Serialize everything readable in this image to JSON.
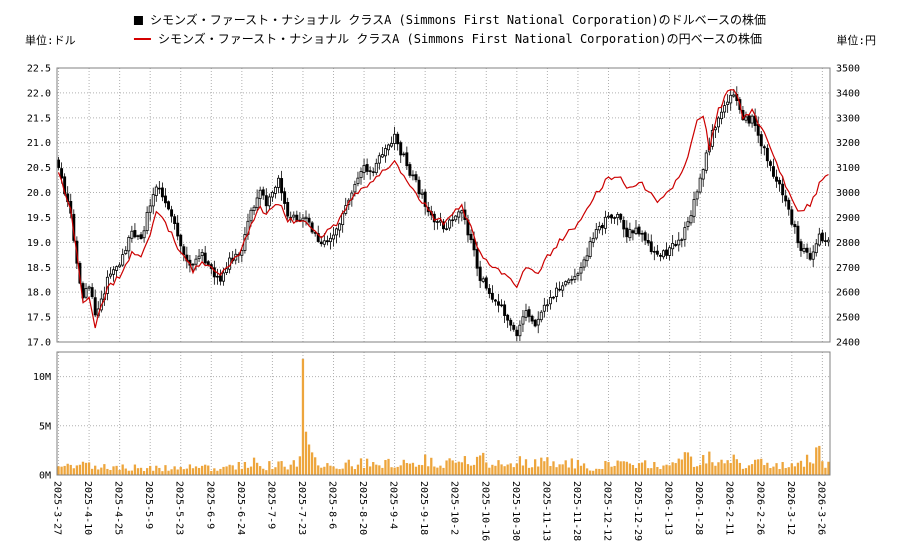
{
  "legend": {
    "items": [
      {
        "marker": "square-icon",
        "color": "#000000",
        "label": "シモンズ・ファースト・ナショナル クラスA (Simmons First National Corporation)のドルベースの株価"
      },
      {
        "marker": "line-icon",
        "color": "#d40000",
        "label": "シモンズ・ファースト・ナショナル クラスA (Simmons First National Corporation)の円ベースの株価"
      }
    ]
  },
  "axes": {
    "left_unit": "単位:ドル",
    "right_unit": "単位:円"
  },
  "chart_data": {
    "type": "candlestick",
    "subtype": "ohlc-candles + line overlay + volume bars",
    "title": "",
    "price_axis_left": {
      "unit": "ドル",
      "min": 17.0,
      "max": 22.5,
      "step": 0.5,
      "tick_labels": [
        "22.5",
        "22.0",
        "21.5",
        "21.0",
        "20.5",
        "20.0",
        "19.5",
        "19.0",
        "18.5",
        "18.0",
        "17.5",
        "17.0"
      ]
    },
    "price_axis_right": {
      "unit": "円",
      "min": 2400,
      "max": 3500,
      "step": 100,
      "tick_labels": [
        "3500",
        "3400",
        "3300",
        "3200",
        "3100",
        "3000",
        "2900",
        "2800",
        "2700",
        "2600",
        "2500",
        "2400"
      ]
    },
    "volume_axis": {
      "max_m": 12.5,
      "tick_labels": [
        "10M",
        "5M",
        "0M"
      ],
      "tick_values_m": [
        10,
        5,
        0
      ]
    },
    "x_tick_labels": [
      "2025-3-27",
      "2025-4-10",
      "2025-4-25",
      "2025-5-9",
      "2025-5-23",
      "2025-6-9",
      "2025-6-24",
      "2025-7-9",
      "2025-7-23",
      "2025-8-6",
      "2025-8-20",
      "2025-9-4",
      "2025-9-18",
      "2025-10-2",
      "2025-10-16",
      "2025-10-30",
      "2025-11-13",
      "2025-11-28",
      "2025-12-12",
      "2025-12-29",
      "2026-1-13",
      "2026-1-28",
      "2026-2-11",
      "2026-2-26",
      "2026-3-12",
      "2026-3-26"
    ],
    "n_points": 253,
    "points_per_tick": 10,
    "series": {
      "usd_close_keypoints": [
        [
          0,
          20.5
        ],
        [
          2,
          20.05
        ],
        [
          4,
          19.6
        ],
        [
          6,
          18.6
        ],
        [
          8,
          17.9
        ],
        [
          10,
          18.15
        ],
        [
          12,
          17.5
        ],
        [
          14,
          17.8
        ],
        [
          16,
          18.3
        ],
        [
          20,
          18.55
        ],
        [
          24,
          19.2
        ],
        [
          27,
          19.0
        ],
        [
          30,
          19.8
        ],
        [
          32,
          20.1
        ],
        [
          34,
          19.9
        ],
        [
          37,
          19.5
        ],
        [
          40,
          18.9
        ],
        [
          44,
          18.5
        ],
        [
          47,
          18.8
        ],
        [
          50,
          18.4
        ],
        [
          53,
          18.3
        ],
        [
          56,
          18.6
        ],
        [
          60,
          18.9
        ],
        [
          63,
          19.6
        ],
        [
          66,
          20.0
        ],
        [
          68,
          19.8
        ],
        [
          70,
          20.0
        ],
        [
          72,
          20.2
        ],
        [
          75,
          19.6
        ],
        [
          78,
          19.5
        ],
        [
          80,
          19.55
        ],
        [
          83,
          19.2
        ],
        [
          86,
          18.95
        ],
        [
          90,
          19.1
        ],
        [
          93,
          19.5
        ],
        [
          96,
          20.0
        ],
        [
          100,
          20.5
        ],
        [
          103,
          20.45
        ],
        [
          106,
          20.8
        ],
        [
          110,
          21.1
        ],
        [
          113,
          20.7
        ],
        [
          116,
          20.3
        ],
        [
          120,
          19.8
        ],
        [
          123,
          19.5
        ],
        [
          126,
          19.3
        ],
        [
          130,
          19.5
        ],
        [
          132,
          19.65
        ],
        [
          135,
          19.0
        ],
        [
          138,
          18.3
        ],
        [
          140,
          18.1
        ],
        [
          143,
          17.8
        ],
        [
          146,
          17.6
        ],
        [
          150,
          17.2
        ],
        [
          153,
          17.6
        ],
        [
          156,
          17.4
        ],
        [
          160,
          17.8
        ],
        [
          163,
          18.0
        ],
        [
          166,
          18.2
        ],
        [
          170,
          18.4
        ],
        [
          173,
          18.8
        ],
        [
          176,
          19.2
        ],
        [
          180,
          19.5
        ],
        [
          183,
          19.6
        ],
        [
          186,
          19.2
        ],
        [
          190,
          19.2
        ],
        [
          193,
          19.0
        ],
        [
          196,
          18.7
        ],
        [
          200,
          18.85
        ],
        [
          203,
          19.0
        ],
        [
          206,
          19.4
        ],
        [
          210,
          20.3
        ],
        [
          213,
          21.0
        ],
        [
          216,
          21.5
        ],
        [
          220,
          22.0
        ],
        [
          222,
          21.9
        ],
        [
          224,
          21.4
        ],
        [
          227,
          21.5
        ],
        [
          230,
          21.0
        ],
        [
          233,
          20.5
        ],
        [
          236,
          20.1
        ],
        [
          240,
          19.4
        ],
        [
          243,
          18.9
        ],
        [
          246,
          18.7
        ],
        [
          249,
          19.1
        ],
        [
          252,
          19.0
        ]
      ],
      "jpy_keypoints": [
        [
          0,
          3080
        ],
        [
          2,
          3000
        ],
        [
          4,
          2930
        ],
        [
          6,
          2760
        ],
        [
          8,
          2550
        ],
        [
          10,
          2590
        ],
        [
          12,
          2460
        ],
        [
          14,
          2540
        ],
        [
          16,
          2620
        ],
        [
          20,
          2660
        ],
        [
          24,
          2760
        ],
        [
          27,
          2740
        ],
        [
          30,
          2840
        ],
        [
          32,
          2920
        ],
        [
          34,
          2900
        ],
        [
          37,
          2830
        ],
        [
          40,
          2760
        ],
        [
          44,
          2690
        ],
        [
          47,
          2730
        ],
        [
          50,
          2690
        ],
        [
          53,
          2670
        ],
        [
          56,
          2710
        ],
        [
          60,
          2770
        ],
        [
          63,
          2880
        ],
        [
          66,
          2940
        ],
        [
          68,
          2910
        ],
        [
          70,
          2930
        ],
        [
          72,
          2960
        ],
        [
          75,
          2890
        ],
        [
          78,
          2880
        ],
        [
          80,
          2890
        ],
        [
          83,
          2860
        ],
        [
          86,
          2830
        ],
        [
          90,
          2860
        ],
        [
          93,
          2910
        ],
        [
          96,
          2980
        ],
        [
          100,
          3030
        ],
        [
          103,
          3040
        ],
        [
          106,
          3080
        ],
        [
          110,
          3130
        ],
        [
          113,
          3070
        ],
        [
          116,
          3010
        ],
        [
          120,
          2950
        ],
        [
          123,
          2900
        ],
        [
          126,
          2880
        ],
        [
          130,
          2930
        ],
        [
          132,
          2940
        ],
        [
          135,
          2860
        ],
        [
          138,
          2760
        ],
        [
          140,
          2730
        ],
        [
          143,
          2700
        ],
        [
          146,
          2670
        ],
        [
          150,
          2630
        ],
        [
          153,
          2700
        ],
        [
          156,
          2670
        ],
        [
          160,
          2740
        ],
        [
          163,
          2790
        ],
        [
          166,
          2830
        ],
        [
          170,
          2870
        ],
        [
          173,
          2940
        ],
        [
          176,
          3000
        ],
        [
          180,
          3060
        ],
        [
          183,
          3070
        ],
        [
          186,
          3020
        ],
        [
          190,
          3040
        ],
        [
          193,
          3010
        ],
        [
          196,
          2970
        ],
        [
          200,
          3010
        ],
        [
          203,
          3060
        ],
        [
          206,
          3140
        ],
        [
          209,
          3290
        ],
        [
          211,
          3310
        ],
        [
          213,
          3180
        ],
        [
          216,
          3330
        ],
        [
          220,
          3420
        ],
        [
          222,
          3390
        ],
        [
          224,
          3300
        ],
        [
          227,
          3330
        ],
        [
          230,
          3260
        ],
        [
          233,
          3170
        ],
        [
          236,
          3090
        ],
        [
          240,
          2970
        ],
        [
          243,
          2920
        ],
        [
          246,
          2950
        ],
        [
          249,
          3030
        ],
        [
          252,
          3070
        ]
      ],
      "volume_keypoints": [
        [
          0,
          0.8
        ],
        [
          6,
          0.9
        ],
        [
          9,
          1.1
        ],
        [
          12,
          0.9
        ],
        [
          16,
          0.8
        ],
        [
          19,
          1.0
        ],
        [
          23,
          0.7
        ],
        [
          28,
          0.8
        ],
        [
          33,
          0.65
        ],
        [
          38,
          0.7
        ],
        [
          43,
          0.75
        ],
        [
          48,
          0.7
        ],
        [
          53,
          0.8
        ],
        [
          57,
          1.2
        ],
        [
          60,
          0.9
        ],
        [
          63,
          1.4
        ],
        [
          67,
          0.9
        ],
        [
          70,
          1.1
        ],
        [
          74,
          0.9
        ],
        [
          78,
          1.1
        ],
        [
          84,
          1.4
        ],
        [
          88,
          1.1
        ],
        [
          92,
          1.0
        ],
        [
          97,
          1.1
        ],
        [
          100,
          1.2
        ],
        [
          104,
          1.0
        ],
        [
          108,
          1.4
        ],
        [
          112,
          1.1
        ],
        [
          116,
          1.1
        ],
        [
          119,
          1.6
        ],
        [
          122,
          1.8
        ],
        [
          126,
          1.1
        ],
        [
          130,
          1.4
        ],
        [
          133,
          1.7
        ],
        [
          136,
          1.2
        ],
        [
          139,
          1.6
        ],
        [
          142,
          1.3
        ],
        [
          146,
          1.1
        ],
        [
          148,
          1.7
        ],
        [
          151,
          1.3
        ],
        [
          155,
          1.0
        ],
        [
          158,
          1.5
        ],
        [
          161,
          1.1
        ],
        [
          165,
          0.95
        ],
        [
          168,
          1.3
        ],
        [
          171,
          1.0
        ],
        [
          175,
          0.85
        ],
        [
          178,
          1.2
        ],
        [
          181,
          0.95
        ],
        [
          185,
          1.2
        ],
        [
          188,
          0.95
        ],
        [
          190,
          1.5
        ],
        [
          194,
          1.0
        ],
        [
          198,
          0.9
        ],
        [
          202,
          1.1
        ],
        [
          205,
          2.0
        ],
        [
          208,
          1.2
        ],
        [
          211,
          1.6
        ],
        [
          213,
          2.2
        ],
        [
          216,
          1.3
        ],
        [
          220,
          1.5
        ],
        [
          224,
          1.1
        ],
        [
          228,
          1.3
        ],
        [
          232,
          1.0
        ],
        [
          236,
          1.2
        ],
        [
          240,
          1.0
        ],
        [
          244,
          1.3
        ],
        [
          246,
          2.0
        ],
        [
          248,
          2.6
        ],
        [
          250,
          1.4
        ],
        [
          252,
          1.0
        ]
      ],
      "volume_spikes": {
        "79": 1.9,
        "80": 11.8,
        "81": 4.4,
        "82": 3.1,
        "83": 2.3,
        "84": 1.8
      }
    },
    "colors": {
      "candle": "#000000",
      "candle_up_fill": "#ffffff",
      "line": "#cc0000",
      "volume": "#eda53c",
      "grid": "#b0b0b0",
      "border": "#808080",
      "text": "#000000"
    },
    "legend_position": "top-center",
    "grid": true,
    "seed": 11
  }
}
